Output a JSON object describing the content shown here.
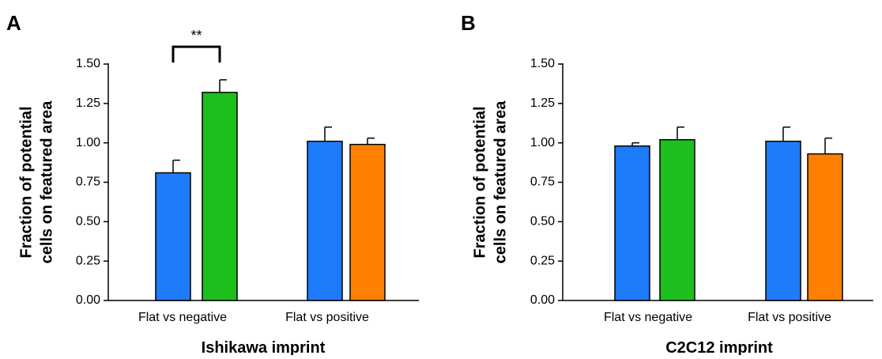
{
  "chart_data": [
    {
      "panel": "A",
      "type": "bar",
      "title": "",
      "xlabel": "Ishikawa imprint",
      "ylabel_lines": [
        "Fraction of potential",
        "cells on featured area"
      ],
      "ylim": [
        0,
        1.5
      ],
      "yticks": [
        "0.00",
        "0.25",
        "0.50",
        "0.75",
        "1.00",
        "1.25",
        "1.50"
      ],
      "grid": false,
      "groups": [
        {
          "label": "Flat vs negative",
          "bars": [
            {
              "value": 0.81,
              "error": 0.08,
              "color": "#1e7bfa"
            },
            {
              "value": 1.32,
              "error": 0.08,
              "color": "#1dbf1d"
            }
          ]
        },
        {
          "label": "Flat vs positive",
          "bars": [
            {
              "value": 1.01,
              "error": 0.09,
              "color": "#1e7bfa"
            },
            {
              "value": 0.99,
              "error": 0.04,
              "color": "#ff7f00"
            }
          ]
        }
      ],
      "annotation": {
        "text": "**",
        "group": 0,
        "bars": [
          0,
          1
        ],
        "y": 1.61
      }
    },
    {
      "panel": "B",
      "type": "bar",
      "title": "",
      "xlabel": "C2C12 imprint",
      "ylabel_lines": [
        "Fraction of potential",
        "cells on featured area"
      ],
      "ylim": [
        0,
        1.5
      ],
      "yticks": [
        "0.00",
        "0.25",
        "0.50",
        "0.75",
        "1.00",
        "1.25",
        "1.50"
      ],
      "grid": false,
      "groups": [
        {
          "label": "Flat vs negative",
          "bars": [
            {
              "value": 0.98,
              "error": 0.02,
              "color": "#1e7bfa"
            },
            {
              "value": 1.02,
              "error": 0.08,
              "color": "#1dbf1d"
            }
          ]
        },
        {
          "label": "Flat vs positive",
          "bars": [
            {
              "value": 1.01,
              "error": 0.09,
              "color": "#1e7bfa"
            },
            {
              "value": 0.93,
              "error": 0.1,
              "color": "#ff7f00"
            }
          ]
        }
      ]
    }
  ]
}
